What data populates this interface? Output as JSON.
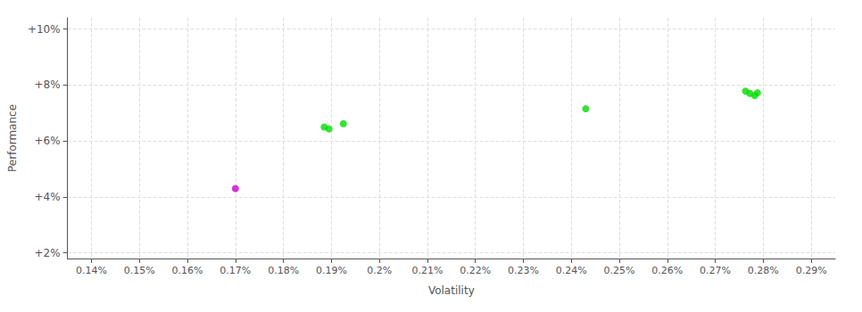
{
  "chart_data": {
    "type": "scatter",
    "xlabel": "Volatility",
    "ylabel": "Performance",
    "xlim": [
      0.135,
      0.295
    ],
    "ylim": [
      0.018,
      0.104
    ],
    "xticks": [
      {
        "value": 0.14,
        "label": "0.14%"
      },
      {
        "value": 0.15,
        "label": "0.15%"
      },
      {
        "value": 0.16,
        "label": "0.16%"
      },
      {
        "value": 0.17,
        "label": "0.17%"
      },
      {
        "value": 0.18,
        "label": "0.18%"
      },
      {
        "value": 0.19,
        "label": "0.19%"
      },
      {
        "value": 0.2,
        "label": "0.2%"
      },
      {
        "value": 0.21,
        "label": "0.21%"
      },
      {
        "value": 0.22,
        "label": "0.22%"
      },
      {
        "value": 0.23,
        "label": "0.23%"
      },
      {
        "value": 0.24,
        "label": "0.24%"
      },
      {
        "value": 0.25,
        "label": "0.25%"
      },
      {
        "value": 0.26,
        "label": "0.26%"
      },
      {
        "value": 0.27,
        "label": "0.27%"
      },
      {
        "value": 0.28,
        "label": "0.28%"
      },
      {
        "value": 0.29,
        "label": "0.29%"
      }
    ],
    "yticks": [
      {
        "value": 0.02,
        "label": "+2%"
      },
      {
        "value": 0.04,
        "label": "+4%"
      },
      {
        "value": 0.06,
        "label": "+6%"
      },
      {
        "value": 0.08,
        "label": "+8%"
      },
      {
        "value": 0.1,
        "label": "+10%"
      }
    ],
    "grid": true,
    "marker": "circle",
    "series": [
      {
        "color": "#00dd00",
        "x": [
          0.1885,
          0.1895,
          0.1925,
          0.243,
          0.2763,
          0.2772,
          0.2782,
          0.2788
        ],
        "values": [
          0.065,
          0.0643,
          0.0662,
          0.0715,
          0.0778,
          0.077,
          0.0762,
          0.0772
        ]
      },
      {
        "color": "#cc00cc",
        "x": [
          0.17
        ],
        "values": [
          0.043
        ]
      }
    ]
  }
}
